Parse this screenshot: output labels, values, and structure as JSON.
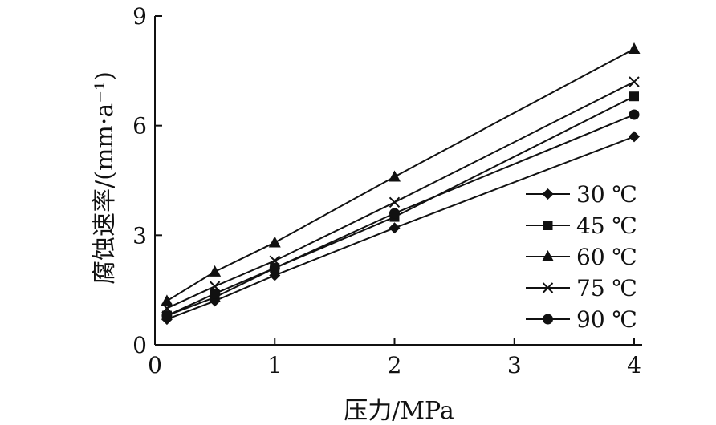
{
  "chart_data": {
    "type": "line",
    "title": "",
    "xlabel": "压力/MPa",
    "ylabel": "腐蚀速率/(mm·a⁻¹)",
    "xlim": [
      0,
      4
    ],
    "ylim": [
      0,
      9
    ],
    "xticks": [
      0,
      1,
      2,
      3,
      4
    ],
    "yticks": [
      0,
      3,
      6,
      9
    ],
    "x": [
      0.1,
      0.5,
      1,
      2,
      4
    ],
    "grid": false,
    "legend_position": "right",
    "series": [
      {
        "name": "30 ℃",
        "marker": "diamond",
        "values": [
          0.7,
          1.2,
          1.9,
          3.2,
          5.7
        ]
      },
      {
        "name": "45 ℃",
        "marker": "square",
        "values": [
          0.8,
          1.3,
          2.1,
          3.5,
          6.8
        ]
      },
      {
        "name": "60 ℃",
        "marker": "triangle",
        "values": [
          1.2,
          2.0,
          2.8,
          4.6,
          8.1
        ]
      },
      {
        "name": "75 ℃",
        "marker": "x",
        "values": [
          1.0,
          1.6,
          2.3,
          3.9,
          7.2
        ]
      },
      {
        "name": "90 ℃",
        "marker": "circle",
        "values": [
          0.8,
          1.4,
          2.1,
          3.6,
          6.3
        ]
      }
    ]
  }
}
